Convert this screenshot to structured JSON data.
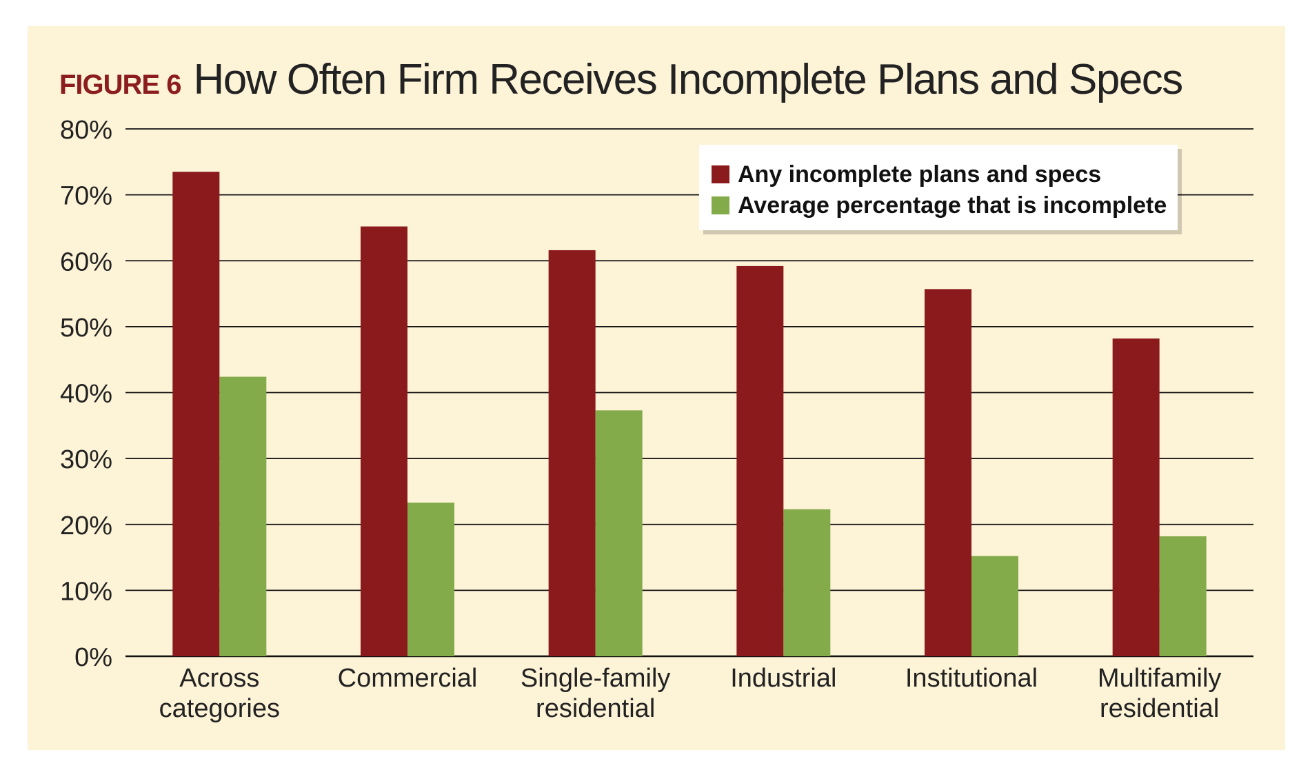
{
  "figure_label": "FIGURE 6",
  "colors": {
    "background": "#fdf3d7",
    "series_1": "#8b1a1c",
    "series_2": "#83ab49",
    "label_red": "#8b1d1f"
  },
  "chart_data": {
    "type": "bar",
    "title": "How Often Firm Receives Incomplete Plans and Specs",
    "categories": [
      [
        "Across",
        "categories"
      ],
      [
        "Commercial"
      ],
      [
        "Single-family",
        "residential"
      ],
      [
        "Industrial"
      ],
      [
        "Institutional"
      ],
      [
        "Multifamily",
        "residential"
      ]
    ],
    "series": [
      {
        "name": "Any incomplete plans and specs",
        "values": [
          73.5,
          65.2,
          61.6,
          59.2,
          55.7,
          48.2
        ]
      },
      {
        "name": "Average percentage that is incomplete",
        "values": [
          42.4,
          23.3,
          37.3,
          22.3,
          15.2,
          18.2
        ]
      }
    ],
    "ylim": [
      0,
      80
    ],
    "yticks": [
      0,
      10,
      20,
      30,
      40,
      50,
      60,
      70,
      80
    ],
    "ytick_labels": [
      "0%",
      "10%",
      "20%",
      "30%",
      "40%",
      "50%",
      "60%",
      "70%",
      "80%"
    ],
    "grid": true,
    "legend_position": "top-right"
  }
}
